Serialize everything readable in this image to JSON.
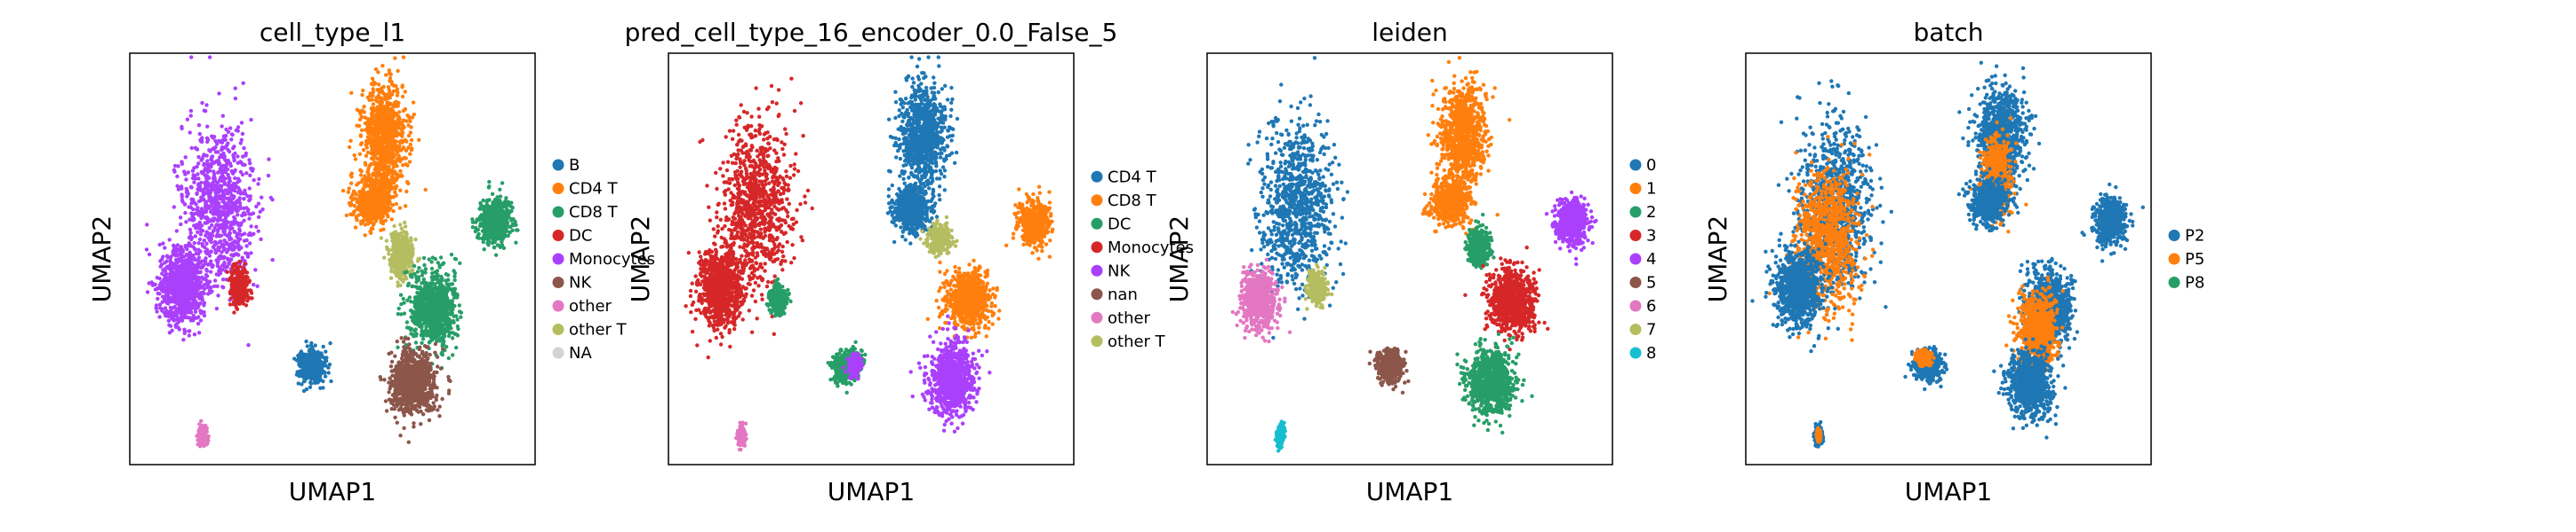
{
  "chart_data": [
    {
      "type": "scatter",
      "title": "cell_type_l1",
      "xlabel": "UMAP1",
      "ylabel": "UMAP2",
      "legend": {
        "placement": "right",
        "entries": [
          {
            "label": "B",
            "color": "#1f77b4"
          },
          {
            "label": "CD4 T",
            "color": "#ff7f0e"
          },
          {
            "label": "CD8 T",
            "color": "#279e68"
          },
          {
            "label": "DC",
            "color": "#d62728"
          },
          {
            "label": "Monocytes",
            "color": "#aa40fc"
          },
          {
            "label": "NK",
            "color": "#8c564b"
          },
          {
            "label": "other",
            "color": "#e377c2"
          },
          {
            "label": "other T",
            "color": "#b5bd61"
          },
          {
            "label": "NA",
            "color": "#d3d3d3"
          }
        ]
      },
      "clusters": [
        {
          "label": "Monocytes",
          "color": "#aa40fc",
          "x": 0.22,
          "y": 0.37,
          "sx": 0.08,
          "sy": 0.18
        },
        {
          "label": "Monocytes",
          "color": "#aa40fc",
          "x": 0.13,
          "y": 0.57,
          "sx": 0.05,
          "sy": 0.08
        },
        {
          "label": "DC",
          "color": "#d62728",
          "x": 0.27,
          "y": 0.57,
          "sx": 0.02,
          "sy": 0.04
        },
        {
          "label": "CD4 T",
          "color": "#ff7f0e",
          "x": 0.63,
          "y": 0.2,
          "sx": 0.05,
          "sy": 0.11
        },
        {
          "label": "CD4 T",
          "color": "#ff7f0e",
          "x": 0.6,
          "y": 0.36,
          "sx": 0.04,
          "sy": 0.05
        },
        {
          "label": "other T",
          "color": "#b5bd61",
          "x": 0.67,
          "y": 0.49,
          "sx": 0.025,
          "sy": 0.05
        },
        {
          "label": "CD8 T",
          "color": "#279e68",
          "x": 0.75,
          "y": 0.62,
          "sx": 0.05,
          "sy": 0.08
        },
        {
          "label": "CD8 T",
          "color": "#279e68",
          "x": 0.9,
          "y": 0.41,
          "sx": 0.035,
          "sy": 0.05
        },
        {
          "label": "NK",
          "color": "#8c564b",
          "x": 0.7,
          "y": 0.8,
          "sx": 0.05,
          "sy": 0.07
        },
        {
          "label": "B",
          "color": "#1f77b4",
          "x": 0.45,
          "y": 0.76,
          "sx": 0.03,
          "sy": 0.035
        },
        {
          "label": "other",
          "color": "#e377c2",
          "x": 0.18,
          "y": 0.93,
          "sx": 0.008,
          "sy": 0.02
        }
      ]
    },
    {
      "type": "scatter",
      "title": "pred_cell_type_16_encoder_0.0_False_5",
      "xlabel": "UMAP1",
      "ylabel": "UMAP2",
      "legend": {
        "placement": "right",
        "entries": [
          {
            "label": "CD4 T",
            "color": "#1f77b4"
          },
          {
            "label": "CD8 T",
            "color": "#ff7f0e"
          },
          {
            "label": "DC",
            "color": "#279e68"
          },
          {
            "label": "Monocytes",
            "color": "#d62728"
          },
          {
            "label": "NK",
            "color": "#aa40fc"
          },
          {
            "label": "nan",
            "color": "#8c564b"
          },
          {
            "label": "other",
            "color": "#e377c2"
          },
          {
            "label": "other T",
            "color": "#b5bd61"
          }
        ]
      },
      "clusters": [
        {
          "label": "Monocytes",
          "color": "#d62728",
          "x": 0.22,
          "y": 0.37,
          "sx": 0.08,
          "sy": 0.18
        },
        {
          "label": "Monocytes",
          "color": "#d62728",
          "x": 0.13,
          "y": 0.57,
          "sx": 0.05,
          "sy": 0.08
        },
        {
          "label": "DC",
          "color": "#279e68",
          "x": 0.27,
          "y": 0.6,
          "sx": 0.02,
          "sy": 0.03
        },
        {
          "label": "CD4 T",
          "color": "#1f77b4",
          "x": 0.63,
          "y": 0.2,
          "sx": 0.05,
          "sy": 0.11
        },
        {
          "label": "CD4 T",
          "color": "#1f77b4",
          "x": 0.6,
          "y": 0.38,
          "sx": 0.04,
          "sy": 0.05
        },
        {
          "label": "other T",
          "color": "#b5bd61",
          "x": 0.67,
          "y": 0.45,
          "sx": 0.025,
          "sy": 0.03
        },
        {
          "label": "CD8 T",
          "color": "#ff7f0e",
          "x": 0.74,
          "y": 0.6,
          "sx": 0.05,
          "sy": 0.06
        },
        {
          "label": "CD8 T",
          "color": "#ff7f0e",
          "x": 0.9,
          "y": 0.41,
          "sx": 0.035,
          "sy": 0.05
        },
        {
          "label": "NK",
          "color": "#aa40fc",
          "x": 0.7,
          "y": 0.79,
          "sx": 0.05,
          "sy": 0.08
        },
        {
          "label": "DC",
          "color": "#279e68",
          "x": 0.44,
          "y": 0.76,
          "sx": 0.03,
          "sy": 0.035
        },
        {
          "label": "NK",
          "color": "#aa40fc",
          "x": 0.46,
          "y": 0.76,
          "sx": 0.015,
          "sy": 0.02
        },
        {
          "label": "other",
          "color": "#e377c2",
          "x": 0.18,
          "y": 0.93,
          "sx": 0.008,
          "sy": 0.02
        }
      ]
    },
    {
      "type": "scatter",
      "title": "leiden",
      "xlabel": "UMAP1",
      "ylabel": "UMAP2",
      "legend": {
        "placement": "right",
        "entries": [
          {
            "label": "0",
            "color": "#1f77b4"
          },
          {
            "label": "1",
            "color": "#ff7f0e"
          },
          {
            "label": "2",
            "color": "#279e68"
          },
          {
            "label": "3",
            "color": "#d62728"
          },
          {
            "label": "4",
            "color": "#aa40fc"
          },
          {
            "label": "5",
            "color": "#8c564b"
          },
          {
            "label": "6",
            "color": "#e377c2"
          },
          {
            "label": "7",
            "color": "#b5bd61"
          },
          {
            "label": "8",
            "color": "#17becf"
          }
        ]
      },
      "clusters": [
        {
          "label": "0",
          "color": "#1f77b4",
          "x": 0.22,
          "y": 0.37,
          "sx": 0.08,
          "sy": 0.18
        },
        {
          "label": "6",
          "color": "#e377c2",
          "x": 0.13,
          "y": 0.6,
          "sx": 0.04,
          "sy": 0.06
        },
        {
          "label": "7",
          "color": "#b5bd61",
          "x": 0.27,
          "y": 0.57,
          "sx": 0.02,
          "sy": 0.035
        },
        {
          "label": "1",
          "color": "#ff7f0e",
          "x": 0.63,
          "y": 0.2,
          "sx": 0.05,
          "sy": 0.11
        },
        {
          "label": "1",
          "color": "#ff7f0e",
          "x": 0.6,
          "y": 0.36,
          "sx": 0.04,
          "sy": 0.05
        },
        {
          "label": "2",
          "color": "#279e68",
          "x": 0.67,
          "y": 0.47,
          "sx": 0.025,
          "sy": 0.04
        },
        {
          "label": "3",
          "color": "#d62728",
          "x": 0.75,
          "y": 0.6,
          "sx": 0.05,
          "sy": 0.07
        },
        {
          "label": "4",
          "color": "#aa40fc",
          "x": 0.9,
          "y": 0.41,
          "sx": 0.035,
          "sy": 0.05
        },
        {
          "label": "2",
          "color": "#279e68",
          "x": 0.7,
          "y": 0.8,
          "sx": 0.05,
          "sy": 0.07
        },
        {
          "label": "5",
          "color": "#8c564b",
          "x": 0.45,
          "y": 0.76,
          "sx": 0.03,
          "sy": 0.035
        },
        {
          "label": "8",
          "color": "#17becf",
          "x": 0.18,
          "y": 0.93,
          "sx": 0.008,
          "sy": 0.02
        }
      ]
    },
    {
      "type": "scatter",
      "title": "batch",
      "xlabel": "UMAP1",
      "ylabel": "UMAP2",
      "legend": {
        "placement": "right",
        "entries": [
          {
            "label": "P2",
            "color": "#1f77b4"
          },
          {
            "label": "P5",
            "color": "#ff7f0e"
          },
          {
            "label": "P8",
            "color": "#279e68"
          }
        ]
      },
      "clusters": [
        {
          "label": "P2",
          "color": "#1f77b4",
          "x": 0.22,
          "y": 0.37,
          "sx": 0.08,
          "sy": 0.18
        },
        {
          "label": "P5",
          "color": "#ff7f0e",
          "x": 0.2,
          "y": 0.45,
          "sx": 0.07,
          "sy": 0.15
        },
        {
          "label": "P2",
          "color": "#1f77b4",
          "x": 0.13,
          "y": 0.57,
          "sx": 0.05,
          "sy": 0.08
        },
        {
          "label": "P2",
          "color": "#1f77b4",
          "x": 0.63,
          "y": 0.2,
          "sx": 0.05,
          "sy": 0.11
        },
        {
          "label": "P5",
          "color": "#ff7f0e",
          "x": 0.62,
          "y": 0.3,
          "sx": 0.03,
          "sy": 0.08
        },
        {
          "label": "P2",
          "color": "#1f77b4",
          "x": 0.6,
          "y": 0.36,
          "sx": 0.04,
          "sy": 0.05
        },
        {
          "label": "P2",
          "color": "#1f77b4",
          "x": 0.75,
          "y": 0.62,
          "sx": 0.05,
          "sy": 0.08
        },
        {
          "label": "P5",
          "color": "#ff7f0e",
          "x": 0.72,
          "y": 0.68,
          "sx": 0.04,
          "sy": 0.08
        },
        {
          "label": "P2",
          "color": "#1f77b4",
          "x": 0.9,
          "y": 0.41,
          "sx": 0.035,
          "sy": 0.05
        },
        {
          "label": "P2",
          "color": "#1f77b4",
          "x": 0.7,
          "y": 0.8,
          "sx": 0.05,
          "sy": 0.07
        },
        {
          "label": "P2",
          "color": "#1f77b4",
          "x": 0.45,
          "y": 0.76,
          "sx": 0.03,
          "sy": 0.035
        },
        {
          "label": "P5",
          "color": "#ff7f0e",
          "x": 0.44,
          "y": 0.74,
          "sx": 0.015,
          "sy": 0.015
        },
        {
          "label": "P2",
          "color": "#1f77b4",
          "x": 0.18,
          "y": 0.93,
          "sx": 0.008,
          "sy": 0.02
        },
        {
          "label": "P5",
          "color": "#ff7f0e",
          "x": 0.18,
          "y": 0.93,
          "sx": 0.004,
          "sy": 0.01
        }
      ]
    }
  ]
}
